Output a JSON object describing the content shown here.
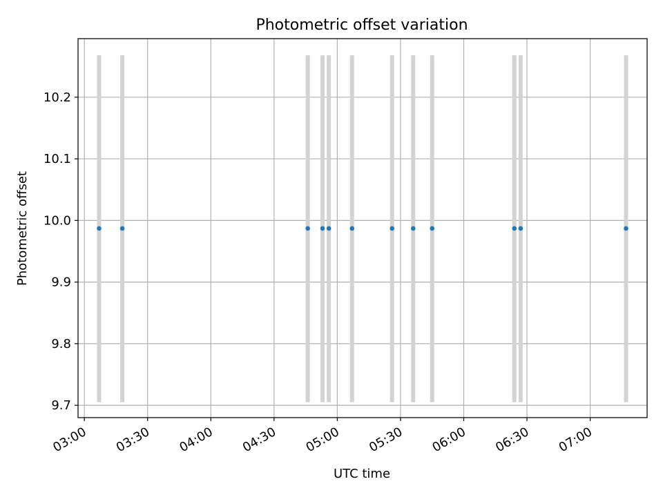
{
  "chart_data": {
    "type": "scatter",
    "title": "Photometric offset variation",
    "xlabel": "UTC time",
    "ylabel": "Photometric offset",
    "grid": true,
    "xlim": [
      "02:57",
      "07:27"
    ],
    "ylim": [
      9.68,
      10.295
    ],
    "x_ticks": [
      "03:00",
      "03:30",
      "04:00",
      "04:30",
      "05:00",
      "05:30",
      "06:00",
      "06:30",
      "07:00"
    ],
    "y_ticks": [
      9.7,
      9.8,
      9.9,
      10.0,
      10.1,
      10.2
    ],
    "y_tick_labels": [
      "9.7",
      "9.8",
      "9.9",
      "10.0",
      "10.1",
      "10.2"
    ],
    "marker_color": "#1f77b4",
    "errorbar_color": "#d3d3d3",
    "series": [
      {
        "x": [
          "03:07",
          "03:18",
          "04:46",
          "04:53",
          "04:56",
          "05:07",
          "05:26",
          "05:36",
          "05:45",
          "06:24",
          "06:27",
          "07:17"
        ],
        "y": [
          9.987,
          9.987,
          9.987,
          9.987,
          9.987,
          9.987,
          9.987,
          9.987,
          9.987,
          9.987,
          9.987,
          9.987
        ],
        "yerr_low": [
          9.705,
          9.705,
          9.705,
          9.705,
          9.705,
          9.705,
          9.705,
          9.705,
          9.705,
          9.705,
          9.705,
          9.705
        ],
        "yerr_high": [
          10.268,
          10.268,
          10.268,
          10.268,
          10.268,
          10.268,
          10.268,
          10.268,
          10.268,
          10.268,
          10.268,
          10.268
        ]
      }
    ]
  }
}
